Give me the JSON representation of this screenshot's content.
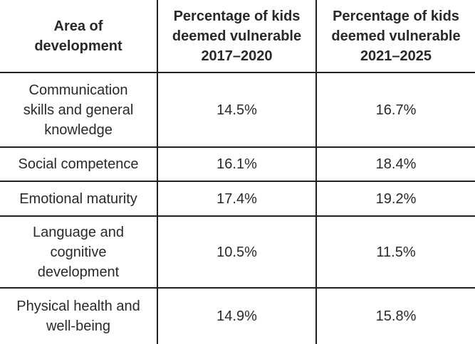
{
  "colors": {
    "text": "#2b2828",
    "border": "#231f20",
    "background": "#ffffff"
  },
  "table": {
    "header": {
      "area": [
        "Area of",
        "development"
      ],
      "period1": [
        "Percentage of kids",
        "deemed vulnerable",
        "2017–2020"
      ],
      "period2": [
        "Percentage of kids",
        "deemed vulnerable",
        "2021–2025"
      ]
    },
    "rows": [
      {
        "area": [
          "Communication",
          "skills and general",
          "knowledge"
        ],
        "p2017_2020": "14.5%",
        "p2021_2025": "16.7%"
      },
      {
        "area": [
          "Social competence"
        ],
        "p2017_2020": "16.1%",
        "p2021_2025": "18.4%"
      },
      {
        "area": [
          "Emotional maturity"
        ],
        "p2017_2020": "17.4%",
        "p2021_2025": "19.2%"
      },
      {
        "area": [
          "Language and",
          "cognitive",
          "development"
        ],
        "p2017_2020": "10.5%",
        "p2021_2025": "11.5%"
      },
      {
        "area": [
          "Physical health and",
          "well-being"
        ],
        "p2017_2020": "14.9%",
        "p2021_2025": "15.8%"
      }
    ]
  },
  "chart_data": {
    "type": "table",
    "columns": [
      "Area of development",
      "Percentage of kids deemed vulnerable 2017–2020",
      "Percentage of kids deemed vulnerable 2021–2025"
    ],
    "rows": [
      [
        "Communication skills and general knowledge",
        "14.5%",
        "16.7%"
      ],
      [
        "Social competence",
        "16.1%",
        "18.4%"
      ],
      [
        "Emotional maturity",
        "17.4%",
        "19.2%"
      ],
      [
        "Language and cognitive development",
        "10.5%",
        "11.5%"
      ],
      [
        "Physical health and well-being",
        "14.9%",
        "15.8%"
      ]
    ],
    "values_2017_2020": [
      14.5,
      16.1,
      17.4,
      10.5,
      14.9
    ],
    "values_2021_2025": [
      16.7,
      18.4,
      19.2,
      11.5,
      15.8
    ],
    "unit": "%"
  }
}
